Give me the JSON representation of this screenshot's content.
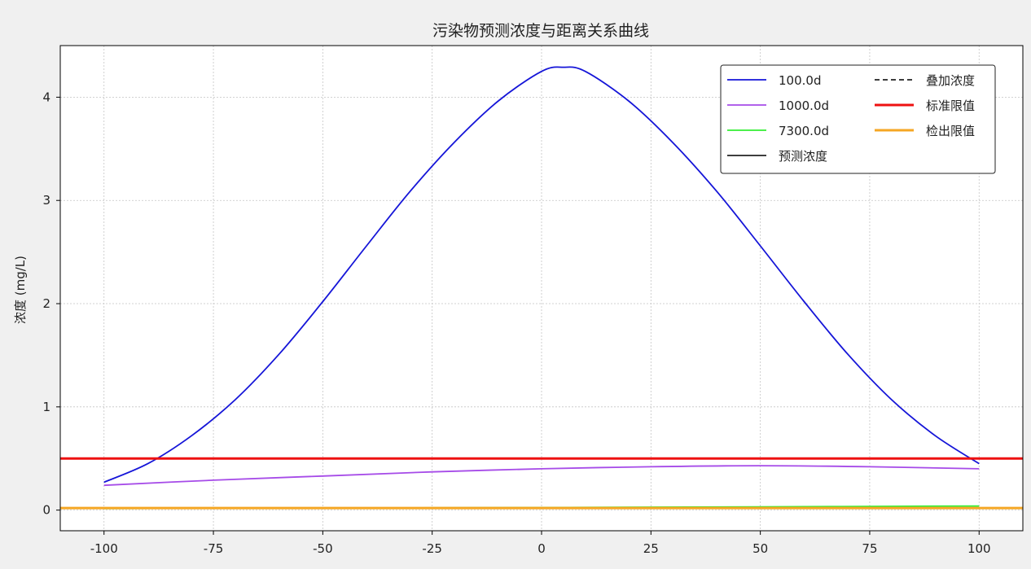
{
  "chart_data": {
    "type": "line",
    "title": "污染物预测浓度与距离关系曲线",
    "xlabel": "",
    "ylabel": "浓度 (mg/L)",
    "xlim": [
      -110,
      110
    ],
    "ylim": [
      -0.2,
      4.5
    ],
    "xticks": [
      -100,
      -75,
      -50,
      -25,
      0,
      25,
      50,
      75,
      100
    ],
    "yticks": [
      0,
      1,
      2,
      3,
      4
    ],
    "grid": true,
    "legend_position": "top-right",
    "series": [
      {
        "name": "100.0d",
        "color": "#1515d8",
        "style": "solid",
        "x": [
          -100,
          -90,
          -80,
          -70,
          -60,
          -50,
          -40,
          -30,
          -20,
          -10,
          0,
          5,
          10,
          20,
          30,
          40,
          50,
          60,
          70,
          80,
          90,
          100
        ],
        "y": [
          0.27,
          0.45,
          0.72,
          1.07,
          1.51,
          2.02,
          2.56,
          3.09,
          3.56,
          3.96,
          4.25,
          4.29,
          4.25,
          3.96,
          3.56,
          3.09,
          2.56,
          2.02,
          1.51,
          1.07,
          0.72,
          0.45
        ]
      },
      {
        "name": "1000.0d",
        "color": "#a64be8",
        "style": "solid",
        "x": [
          -100,
          -75,
          -50,
          -25,
          0,
          25,
          50,
          75,
          100
        ],
        "y": [
          0.24,
          0.29,
          0.33,
          0.37,
          0.4,
          0.42,
          0.43,
          0.42,
          0.4
        ]
      },
      {
        "name": "7300.0d",
        "color": "#33ee33",
        "style": "solid",
        "x": [
          -100,
          -50,
          0,
          50,
          100
        ],
        "y": [
          0.015,
          0.02,
          0.025,
          0.032,
          0.04
        ]
      },
      {
        "name": "预测浓度",
        "color": "#222222",
        "style": "solid",
        "x": [],
        "y": []
      },
      {
        "name": "叠加浓度",
        "color": "#222222",
        "style": "dashed",
        "x": [],
        "y": []
      },
      {
        "name": "标准限值",
        "color": "#ee1111",
        "style": "solid",
        "x": [
          -110,
          110
        ],
        "y": [
          0.5,
          0.5
        ]
      },
      {
        "name": "检出限值",
        "color": "#f5a623",
        "style": "solid",
        "x": [
          -110,
          110
        ],
        "y": [
          0.02,
          0.02
        ]
      }
    ]
  }
}
